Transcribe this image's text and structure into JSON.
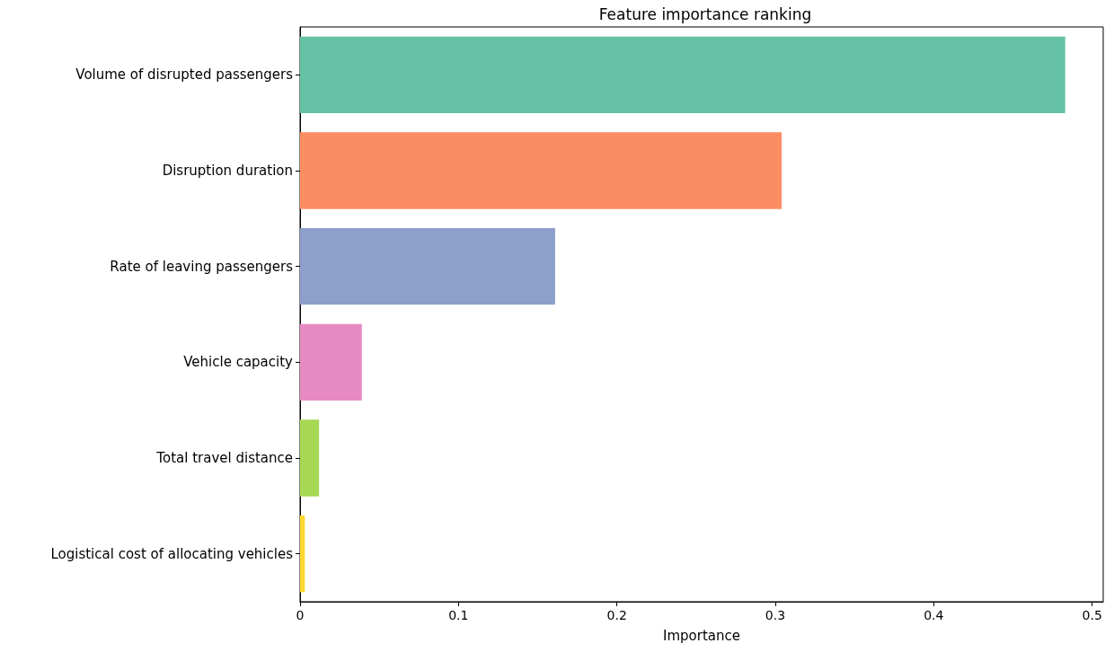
{
  "chart_data": {
    "type": "bar",
    "orientation": "horizontal",
    "title": "Feature importance ranking",
    "xlabel": "Importance",
    "categories": [
      "Volume of disrupted passengers",
      "Disruption duration",
      "Rate of leaving passengers",
      "Vehicle capacity",
      "Total travel distance",
      "Logistical cost of allocating vehicles"
    ],
    "values": [
      0.483,
      0.304,
      0.161,
      0.039,
      0.012,
      0.003
    ],
    "colors": [
      "#66c2a5",
      "#fc8d62",
      "#8da0cb",
      "#e78ac3",
      "#a6d854",
      "#ffd92f"
    ],
    "xlim": [
      0,
      0.507
    ],
    "xticks": [
      0,
      0.1,
      0.2,
      0.3,
      0.4,
      0.5
    ],
    "grid": false
  }
}
